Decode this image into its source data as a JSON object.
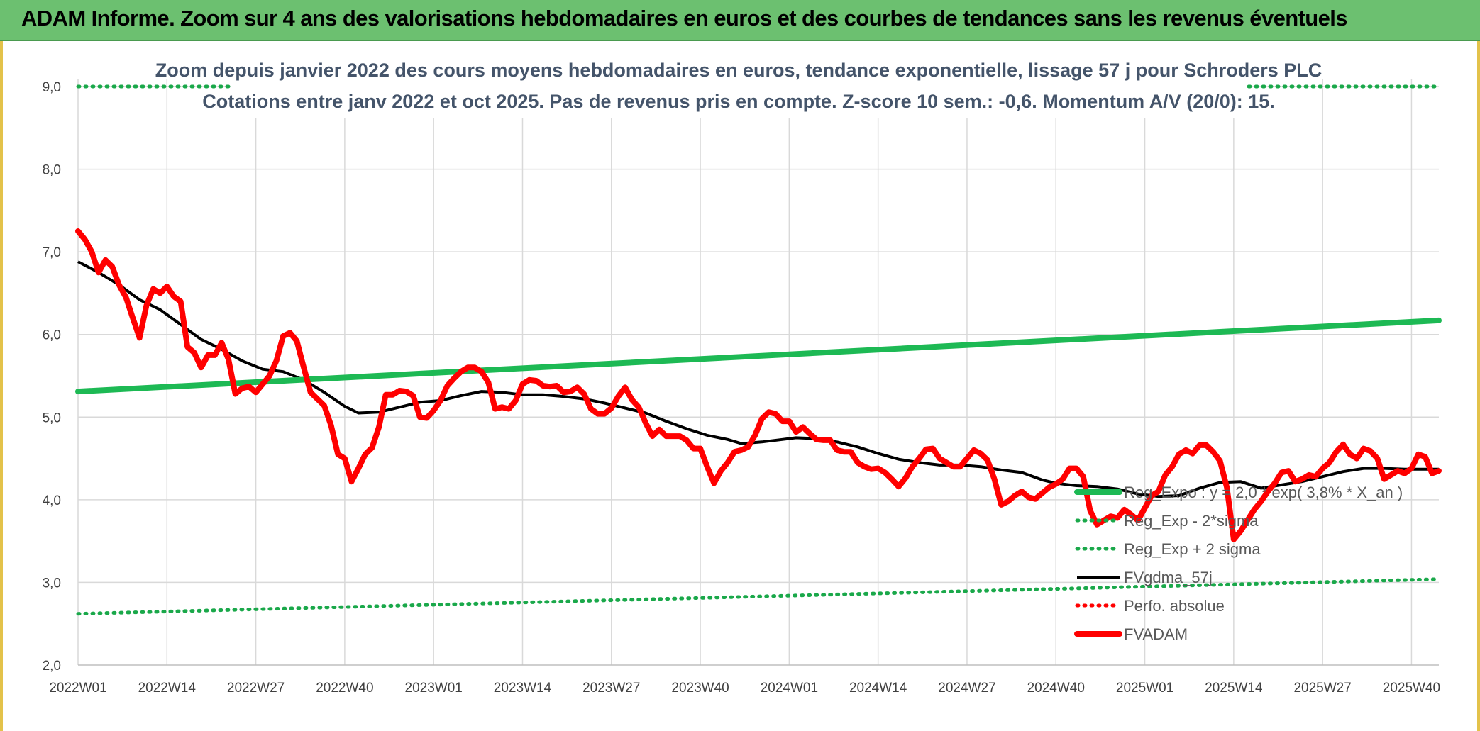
{
  "banner": {
    "title": "ADAM Informe. Zoom sur 4 ans des valorisations hebdomadaires en euros et des courbes de tendances sans les revenus éventuels"
  },
  "colors": {
    "banner": "#6cc070",
    "trend": "#1db954",
    "sigma": "#1aa84a",
    "smooth": "#000000",
    "price": "#ff0000",
    "perf": "#ff0000",
    "grid": "#d9d9d9"
  },
  "chart_data": {
    "type": "line",
    "title": "Zoom depuis janvier 2022 des cours moyens hebdomadaires en euros, tendance exponentielle, lissage 57 j pour Schroders PLC",
    "subtitle": "Cotations entre janv 2022 et oct 2025. Pas de revenus pris en compte. Z-score 10 sem.: -0,6. Momentum A/V (20/0): 15.",
    "xlabel": "",
    "ylabel": "",
    "ylim": [
      2.0,
      9.0
    ],
    "yticks": [
      "2,0",
      "3,0",
      "4,0",
      "5,0",
      "6,0",
      "7,0",
      "8,0",
      "9,0"
    ],
    "xlim": [
      0,
      199
    ],
    "xticks": [
      {
        "x": 0,
        "label": "2022W01"
      },
      {
        "x": 13,
        "label": "2022W14"
      },
      {
        "x": 26,
        "label": "2022W27"
      },
      {
        "x": 39,
        "label": "2022W40"
      },
      {
        "x": 52,
        "label": "2023W01"
      },
      {
        "x": 65,
        "label": "2023W14"
      },
      {
        "x": 78,
        "label": "2023W27"
      },
      {
        "x": 91,
        "label": "2023W40"
      },
      {
        "x": 104,
        "label": "2024W01"
      },
      {
        "x": 117,
        "label": "2024W14"
      },
      {
        "x": 130,
        "label": "2024W27"
      },
      {
        "x": 143,
        "label": "2024W40"
      },
      {
        "x": 156,
        "label": "2025W01"
      },
      {
        "x": 169,
        "label": "2025W14"
      },
      {
        "x": 182,
        "label": "2025W27"
      },
      {
        "x": 195,
        "label": "2025W40"
      }
    ],
    "grid": true,
    "legend_position": "bottom-right",
    "series": [
      {
        "name": "Reg_Expo : y = 2,0 * exp( 3,8% *  X_an )",
        "style": "solid-thick",
        "color": "#1db954",
        "points": [
          [
            0,
            5.31
          ],
          [
            199,
            6.17
          ]
        ]
      },
      {
        "name": "Reg_Exp - 2*sigma",
        "style": "dotted",
        "color": "#1aa84a",
        "points": [
          [
            0,
            2.62
          ],
          [
            199,
            3.04
          ]
        ]
      },
      {
        "name": "Reg_Exp + 2 sigma",
        "style": "dotted",
        "color": "#1aa84a",
        "points": [
          [
            0,
            9.0
          ],
          [
            199,
            9.0
          ]
        ]
      },
      {
        "name": "FVgdma_57j",
        "style": "solid",
        "color": "#000000",
        "points": [
          [
            0,
            6.88
          ],
          [
            3,
            6.75
          ],
          [
            6,
            6.6
          ],
          [
            9,
            6.42
          ],
          [
            12,
            6.3
          ],
          [
            15,
            6.12
          ],
          [
            18,
            5.94
          ],
          [
            21,
            5.82
          ],
          [
            24,
            5.68
          ],
          [
            27,
            5.58
          ],
          [
            30,
            5.55
          ],
          [
            33,
            5.45
          ],
          [
            36,
            5.3
          ],
          [
            39,
            5.13
          ],
          [
            41,
            5.05
          ],
          [
            44,
            5.06
          ],
          [
            47,
            5.12
          ],
          [
            50,
            5.18
          ],
          [
            53,
            5.2
          ],
          [
            56,
            5.26
          ],
          [
            59,
            5.31
          ],
          [
            62,
            5.3
          ],
          [
            65,
            5.27
          ],
          [
            68,
            5.27
          ],
          [
            71,
            5.25
          ],
          [
            74,
            5.22
          ],
          [
            77,
            5.17
          ],
          [
            80,
            5.11
          ],
          [
            83,
            5.05
          ],
          [
            86,
            4.95
          ],
          [
            89,
            4.86
          ],
          [
            92,
            4.78
          ],
          [
            95,
            4.73
          ],
          [
            97,
            4.68
          ],
          [
            100,
            4.7
          ],
          [
            103,
            4.73
          ],
          [
            105,
            4.75
          ],
          [
            108,
            4.74
          ],
          [
            111,
            4.7
          ],
          [
            114,
            4.64
          ],
          [
            117,
            4.56
          ],
          [
            120,
            4.49
          ],
          [
            123,
            4.45
          ],
          [
            126,
            4.42
          ],
          [
            129,
            4.42
          ],
          [
            132,
            4.4
          ],
          [
            135,
            4.36
          ],
          [
            138,
            4.33
          ],
          [
            141,
            4.24
          ],
          [
            143,
            4.2
          ],
          [
            146,
            4.17
          ],
          [
            149,
            4.16
          ],
          [
            152,
            4.13
          ],
          [
            155,
            4.07
          ],
          [
            158,
            4.04
          ],
          [
            161,
            4.05
          ],
          [
            164,
            4.14
          ],
          [
            167,
            4.21
          ],
          [
            170,
            4.22
          ],
          [
            173,
            4.14
          ],
          [
            176,
            4.18
          ],
          [
            179,
            4.22
          ],
          [
            182,
            4.28
          ],
          [
            185,
            4.34
          ],
          [
            188,
            4.38
          ],
          [
            191,
            4.38
          ],
          [
            194,
            4.37
          ],
          [
            197,
            4.37
          ],
          [
            199,
            4.37
          ]
        ]
      },
      {
        "name": "Perfo. absolue",
        "style": "dotted",
        "color": "#ff0000",
        "points": []
      },
      {
        "name": "FVADAM",
        "style": "solid-thick",
        "color": "#ff0000",
        "points": [
          [
            0,
            7.25
          ],
          [
            1,
            7.15
          ],
          [
            2,
            7.0
          ],
          [
            3,
            6.75
          ],
          [
            4,
            6.9
          ],
          [
            5,
            6.82
          ],
          [
            6,
            6.6
          ],
          [
            7,
            6.45
          ],
          [
            8,
            6.2
          ],
          [
            9,
            5.96
          ],
          [
            10,
            6.35
          ],
          [
            11,
            6.55
          ],
          [
            12,
            6.5
          ],
          [
            13,
            6.58
          ],
          [
            14,
            6.46
          ],
          [
            15,
            6.4
          ],
          [
            16,
            5.85
          ],
          [
            17,
            5.78
          ],
          [
            18,
            5.6
          ],
          [
            19,
            5.75
          ],
          [
            20,
            5.75
          ],
          [
            21,
            5.9
          ],
          [
            22,
            5.7
          ],
          [
            23,
            5.28
          ],
          [
            24,
            5.35
          ],
          [
            25,
            5.37
          ],
          [
            26,
            5.3
          ],
          [
            27,
            5.4
          ],
          [
            28,
            5.5
          ],
          [
            29,
            5.68
          ],
          [
            30,
            5.98
          ],
          [
            31,
            6.02
          ],
          [
            32,
            5.92
          ],
          [
            33,
            5.6
          ],
          [
            34,
            5.3
          ],
          [
            35,
            5.22
          ],
          [
            36,
            5.14
          ],
          [
            37,
            4.9
          ],
          [
            38,
            4.55
          ],
          [
            39,
            4.5
          ],
          [
            40,
            4.22
          ],
          [
            41,
            4.38
          ],
          [
            42,
            4.55
          ],
          [
            43,
            4.63
          ],
          [
            44,
            4.88
          ],
          [
            45,
            5.27
          ],
          [
            46,
            5.27
          ],
          [
            47,
            5.32
          ],
          [
            48,
            5.31
          ],
          [
            49,
            5.26
          ],
          [
            50,
            5.0
          ],
          [
            51,
            4.99
          ],
          [
            52,
            5.08
          ],
          [
            53,
            5.2
          ],
          [
            54,
            5.38
          ],
          [
            55,
            5.47
          ],
          [
            56,
            5.55
          ],
          [
            57,
            5.6
          ],
          [
            58,
            5.6
          ],
          [
            59,
            5.55
          ],
          [
            60,
            5.42
          ],
          [
            61,
            5.1
          ],
          [
            62,
            5.12
          ],
          [
            63,
            5.1
          ],
          [
            64,
            5.2
          ],
          [
            65,
            5.4
          ],
          [
            66,
            5.45
          ],
          [
            67,
            5.44
          ],
          [
            68,
            5.38
          ],
          [
            69,
            5.37
          ],
          [
            70,
            5.38
          ],
          [
            71,
            5.3
          ],
          [
            72,
            5.31
          ],
          [
            73,
            5.36
          ],
          [
            74,
            5.28
          ],
          [
            75,
            5.1
          ],
          [
            76,
            5.04
          ],
          [
            77,
            5.04
          ],
          [
            78,
            5.11
          ],
          [
            79,
            5.25
          ],
          [
            80,
            5.36
          ],
          [
            81,
            5.21
          ],
          [
            82,
            5.12
          ],
          [
            83,
            4.93
          ],
          [
            84,
            4.77
          ],
          [
            85,
            4.85
          ],
          [
            86,
            4.77
          ],
          [
            87,
            4.77
          ],
          [
            88,
            4.77
          ],
          [
            89,
            4.72
          ],
          [
            90,
            4.62
          ],
          [
            91,
            4.62
          ],
          [
            92,
            4.4
          ],
          [
            93,
            4.2
          ],
          [
            94,
            4.35
          ],
          [
            95,
            4.45
          ],
          [
            96,
            4.58
          ],
          [
            97,
            4.6
          ],
          [
            98,
            4.64
          ],
          [
            99,
            4.78
          ],
          [
            100,
            4.98
          ],
          [
            101,
            5.06
          ],
          [
            102,
            5.04
          ],
          [
            103,
            4.95
          ],
          [
            104,
            4.95
          ],
          [
            105,
            4.82
          ],
          [
            106,
            4.88
          ],
          [
            107,
            4.8
          ],
          [
            108,
            4.73
          ],
          [
            109,
            4.72
          ],
          [
            110,
            4.72
          ],
          [
            111,
            4.6
          ],
          [
            112,
            4.58
          ],
          [
            113,
            4.58
          ],
          [
            114,
            4.45
          ],
          [
            115,
            4.4
          ],
          [
            116,
            4.37
          ],
          [
            117,
            4.38
          ],
          [
            118,
            4.33
          ],
          [
            119,
            4.25
          ],
          [
            120,
            4.16
          ],
          [
            121,
            4.26
          ],
          [
            122,
            4.4
          ],
          [
            123,
            4.5
          ],
          [
            124,
            4.61
          ],
          [
            125,
            4.62
          ],
          [
            126,
            4.5
          ],
          [
            127,
            4.45
          ],
          [
            128,
            4.4
          ],
          [
            129,
            4.4
          ],
          [
            130,
            4.5
          ],
          [
            131,
            4.6
          ],
          [
            132,
            4.56
          ],
          [
            133,
            4.48
          ],
          [
            134,
            4.25
          ],
          [
            135,
            3.94
          ],
          [
            136,
            3.98
          ],
          [
            137,
            4.05
          ],
          [
            138,
            4.1
          ],
          [
            139,
            4.03
          ],
          [
            140,
            4.01
          ],
          [
            141,
            4.08
          ],
          [
            142,
            4.15
          ],
          [
            143,
            4.19
          ],
          [
            144,
            4.25
          ],
          [
            145,
            4.38
          ],
          [
            146,
            4.38
          ],
          [
            147,
            4.28
          ],
          [
            148,
            3.87
          ],
          [
            149,
            3.7
          ],
          [
            150,
            3.75
          ],
          [
            151,
            3.8
          ],
          [
            152,
            3.78
          ],
          [
            153,
            3.88
          ],
          [
            154,
            3.82
          ],
          [
            155,
            3.75
          ],
          [
            156,
            3.9
          ],
          [
            157,
            4.05
          ],
          [
            158,
            4.1
          ],
          [
            159,
            4.3
          ],
          [
            160,
            4.4
          ],
          [
            161,
            4.55
          ],
          [
            162,
            4.6
          ],
          [
            163,
            4.56
          ],
          [
            164,
            4.66
          ],
          [
            165,
            4.66
          ],
          [
            166,
            4.58
          ],
          [
            167,
            4.47
          ],
          [
            168,
            4.15
          ],
          [
            169,
            3.52
          ],
          [
            170,
            3.62
          ],
          [
            171,
            3.75
          ],
          [
            172,
            3.88
          ],
          [
            173,
            3.98
          ],
          [
            174,
            4.1
          ],
          [
            175,
            4.2
          ],
          [
            176,
            4.33
          ],
          [
            177,
            4.35
          ],
          [
            178,
            4.22
          ],
          [
            179,
            4.25
          ],
          [
            180,
            4.3
          ],
          [
            181,
            4.28
          ],
          [
            182,
            4.38
          ],
          [
            183,
            4.45
          ],
          [
            184,
            4.58
          ],
          [
            185,
            4.67
          ],
          [
            186,
            4.55
          ],
          [
            187,
            4.5
          ],
          [
            188,
            4.62
          ],
          [
            189,
            4.59
          ],
          [
            190,
            4.5
          ],
          [
            191,
            4.25
          ],
          [
            192,
            4.3
          ],
          [
            193,
            4.35
          ],
          [
            194,
            4.32
          ],
          [
            195,
            4.38
          ],
          [
            196,
            4.55
          ],
          [
            197,
            4.52
          ],
          [
            198,
            4.32
          ],
          [
            199,
            4.35
          ]
        ]
      }
    ]
  }
}
